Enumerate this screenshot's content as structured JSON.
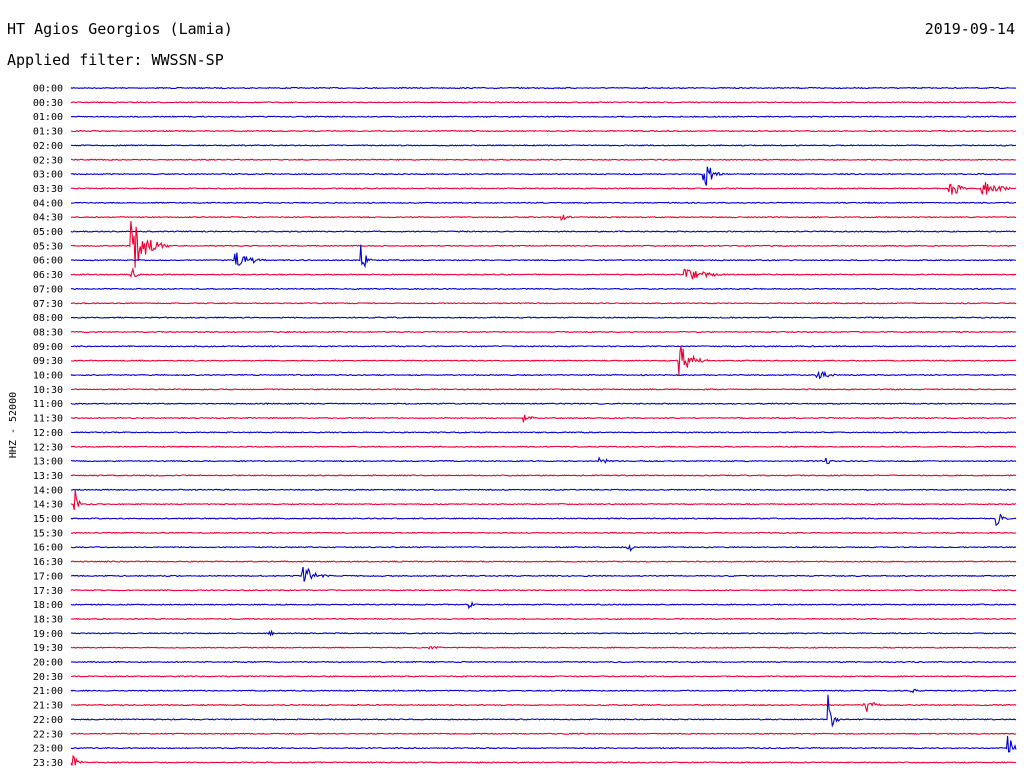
{
  "header": {
    "station": "HT Agios Georgios (Lamia)",
    "date": "2019-09-14",
    "filter": "Applied filter: WWSSN-SP"
  },
  "chart_data": {
    "type": "line",
    "title": "",
    "ylabel": "HHZ - 52000",
    "xlabel": "",
    "grid": false,
    "colors": [
      "#0000cc",
      "#ee0033"
    ],
    "ticks": [
      "00:00",
      "00:30",
      "01:00",
      "01:30",
      "02:00",
      "02:30",
      "03:00",
      "03:30",
      "04:00",
      "04:30",
      "05:00",
      "05:30",
      "06:00",
      "06:30",
      "07:00",
      "07:30",
      "08:00",
      "08:30",
      "09:00",
      "09:30",
      "10:00",
      "10:30",
      "11:00",
      "11:30",
      "12:00",
      "12:30",
      "13:00",
      "13:30",
      "14:00",
      "14:30",
      "15:00",
      "15:30",
      "16:00",
      "16:30",
      "17:00",
      "17:30",
      "18:00",
      "18:30",
      "19:00",
      "19:30",
      "20:00",
      "20:30",
      "21:00",
      "21:30",
      "22:00",
      "22:30",
      "23:00",
      "23:30"
    ],
    "events": [
      {
        "trace": 6,
        "pos": 0.67,
        "amp": 1.2,
        "len": 0.02
      },
      {
        "trace": 7,
        "pos": 0.93,
        "amp": 0.9,
        "len": 0.02
      },
      {
        "trace": 7,
        "pos": 0.965,
        "amp": 0.6,
        "len": 0.04
      },
      {
        "trace": 9,
        "pos": 0.52,
        "amp": 0.3,
        "len": 0.02
      },
      {
        "trace": 11,
        "pos": 0.065,
        "amp": 2.0,
        "len": 0.04
      },
      {
        "trace": 12,
        "pos": 0.175,
        "amp": 0.7,
        "len": 0.04
      },
      {
        "trace": 12,
        "pos": 0.308,
        "amp": 1.2,
        "len": 0.01
      },
      {
        "trace": 13,
        "pos": 0.065,
        "amp": 0.5,
        "len": 0.01
      },
      {
        "trace": 13,
        "pos": 0.65,
        "amp": 0.6,
        "len": 0.05
      },
      {
        "trace": 19,
        "pos": 0.645,
        "amp": 1.2,
        "len": 0.03
      },
      {
        "trace": 20,
        "pos": 0.79,
        "amp": 0.4,
        "len": 0.03
      },
      {
        "trace": 23,
        "pos": 0.48,
        "amp": 0.3,
        "len": 0.02
      },
      {
        "trace": 26,
        "pos": 0.56,
        "amp": 0.3,
        "len": 0.02
      },
      {
        "trace": 26,
        "pos": 0.8,
        "amp": 0.3,
        "len": 0.01
      },
      {
        "trace": 29,
        "pos": 0.005,
        "amp": 2.3,
        "len": 0.005
      },
      {
        "trace": 30,
        "pos": 0.98,
        "amp": 0.6,
        "len": 0.02
      },
      {
        "trace": 32,
        "pos": 0.59,
        "amp": 0.5,
        "len": 0.01
      },
      {
        "trace": 34,
        "pos": 0.245,
        "amp": 0.9,
        "len": 0.03
      },
      {
        "trace": 36,
        "pos": 0.422,
        "amp": 0.6,
        "len": 0.01
      },
      {
        "trace": 38,
        "pos": 0.21,
        "amp": 0.3,
        "len": 0.01
      },
      {
        "trace": 39,
        "pos": 0.38,
        "amp": 0.3,
        "len": 0.02
      },
      {
        "trace": 42,
        "pos": 0.89,
        "amp": 0.2,
        "len": 0.02
      },
      {
        "trace": 43,
        "pos": 0.84,
        "amp": 0.7,
        "len": 0.02
      },
      {
        "trace": 44,
        "pos": 0.803,
        "amp": 2.0,
        "len": 0.01
      },
      {
        "trace": 46,
        "pos": 0.993,
        "amp": 1.4,
        "len": 0.01
      },
      {
        "trace": 47,
        "pos": 0.003,
        "amp": 0.6,
        "len": 0.015
      }
    ]
  }
}
